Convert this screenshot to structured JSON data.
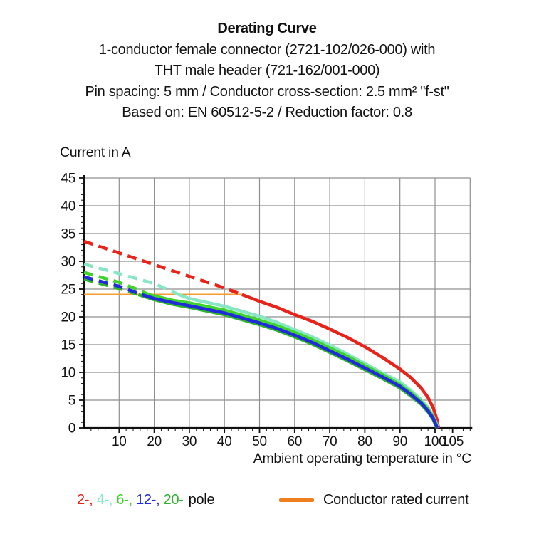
{
  "header": {
    "title": "Derating Curve",
    "subtitle_lines": [
      "1-conductor female connector (2721-102/026-000) with",
      "THT male header (721-162/001-000)",
      "Pin spacing: 5 mm / Conductor cross-section: 2.5 mm² \"f-st\"",
      "Based on: EN 60512-5-2 / Reduction factor: 0.8"
    ]
  },
  "chart_data": {
    "type": "line",
    "title": "Derating Curve",
    "ylabel": "Current in A",
    "xlabel": "Ambient operating temperature in °C",
    "xlim": [
      0,
      110
    ],
    "ylim": [
      0,
      45
    ],
    "x_major_ticks": [
      10,
      20,
      30,
      40,
      50,
      60,
      70,
      80,
      90,
      100,
      105
    ],
    "x_minor_step": 2,
    "y_major_ticks": [
      0,
      5,
      10,
      15,
      20,
      25,
      30,
      35,
      40,
      45
    ],
    "y_minor_step": 1,
    "grid": true,
    "grid_color": "#8F8F8F",
    "axis_color": "#111111",
    "rated_current": {
      "label": "Conductor rated current",
      "value": 24,
      "x_range": [
        0,
        45
      ],
      "line_color": "#F89C30",
      "swatch_color": "#F07E1C"
    },
    "series": [
      {
        "name": "2-pole",
        "color": "#E8231A",
        "dash_until": 45,
        "points": [
          [
            0,
            33.6
          ],
          [
            10,
            31.5
          ],
          [
            20,
            29.4
          ],
          [
            30,
            27.3
          ],
          [
            40,
            25.2
          ],
          [
            45,
            24
          ],
          [
            50,
            22.8
          ],
          [
            55,
            21.7
          ],
          [
            60,
            20.4
          ],
          [
            65,
            19.2
          ],
          [
            70,
            17.8
          ],
          [
            75,
            16.3
          ],
          [
            80,
            14.6
          ],
          [
            85,
            12.7
          ],
          [
            90,
            10.6
          ],
          [
            93,
            9.1
          ],
          [
            96,
            7.2
          ],
          [
            98,
            5.5
          ],
          [
            99.5,
            3.6
          ],
          [
            100.5,
            1.6
          ],
          [
            101,
            0
          ]
        ]
      },
      {
        "name": "4-pole",
        "color": "#87E7C5",
        "dash_until": 27,
        "points": [
          [
            0,
            29.5
          ],
          [
            10,
            27.8
          ],
          [
            20,
            26
          ],
          [
            25,
            24.6
          ],
          [
            27,
            24
          ],
          [
            30,
            23.3
          ],
          [
            35,
            22.6
          ],
          [
            40,
            21.9
          ],
          [
            45,
            21
          ],
          [
            50,
            20.1
          ],
          [
            55,
            19
          ],
          [
            60,
            17.7
          ],
          [
            65,
            16.4
          ],
          [
            70,
            14.9
          ],
          [
            75,
            13.3
          ],
          [
            80,
            11.6
          ],
          [
            85,
            9.9
          ],
          [
            90,
            8.3
          ],
          [
            93,
            6.8
          ],
          [
            96,
            5.1
          ],
          [
            98,
            3.7
          ],
          [
            99.5,
            2.1
          ],
          [
            100.4,
            0.8
          ],
          [
            100.8,
            0
          ]
        ]
      },
      {
        "name": "6-pole",
        "color": "#3FD42C",
        "dash_until": 18.5,
        "points": [
          [
            0,
            28
          ],
          [
            10,
            26.2
          ],
          [
            15,
            25
          ],
          [
            18.5,
            24
          ],
          [
            25,
            23
          ],
          [
            30,
            22.5
          ],
          [
            40,
            21.2
          ],
          [
            50,
            19.4
          ],
          [
            55,
            18.4
          ],
          [
            60,
            17.2
          ],
          [
            65,
            15.9
          ],
          [
            70,
            14.4
          ],
          [
            75,
            12.9
          ],
          [
            80,
            11.2
          ],
          [
            85,
            9.6
          ],
          [
            90,
            7.8
          ],
          [
            93,
            6.4
          ],
          [
            96,
            4.8
          ],
          [
            98,
            3.4
          ],
          [
            99.5,
            1.9
          ],
          [
            100.3,
            0.7
          ],
          [
            100.7,
            0
          ]
        ]
      },
      {
        "name": "20-pole",
        "color": "#2FB32A",
        "dash_until": 15.5,
        "points": [
          [
            0,
            26.8
          ],
          [
            10,
            25.1
          ],
          [
            15.5,
            24
          ],
          [
            20,
            23.1
          ],
          [
            25,
            22.3
          ],
          [
            30,
            21.7
          ],
          [
            40,
            20.4
          ],
          [
            50,
            18.6
          ],
          [
            55,
            17.6
          ],
          [
            60,
            16.4
          ],
          [
            65,
            15.1
          ],
          [
            70,
            13.6
          ],
          [
            75,
            12.1
          ],
          [
            80,
            10.5
          ],
          [
            85,
            8.9
          ],
          [
            90,
            7.2
          ],
          [
            93,
            5.8
          ],
          [
            96,
            4.3
          ],
          [
            98,
            2.9
          ],
          [
            99.5,
            1.5
          ],
          [
            100.2,
            0.4
          ],
          [
            100.5,
            0
          ]
        ]
      },
      {
        "name": "12-pole",
        "color": "#2129DC",
        "dash_until": 16.5,
        "points": [
          [
            0,
            27.2
          ],
          [
            10,
            25.5
          ],
          [
            16.5,
            24
          ],
          [
            20,
            23.3
          ],
          [
            25,
            22.6
          ],
          [
            30,
            22
          ],
          [
            40,
            20.7
          ],
          [
            50,
            18.9
          ],
          [
            55,
            17.9
          ],
          [
            60,
            16.7
          ],
          [
            65,
            15.4
          ],
          [
            70,
            13.9
          ],
          [
            75,
            12.4
          ],
          [
            80,
            10.8
          ],
          [
            85,
            9.2
          ],
          [
            90,
            7.5
          ],
          [
            93,
            6.1
          ],
          [
            96,
            4.5
          ],
          [
            98,
            3.1
          ],
          [
            99.5,
            1.7
          ],
          [
            100.3,
            0.5
          ],
          [
            100.6,
            0
          ]
        ]
      }
    ],
    "legend": {
      "pole_entries": [
        {
          "label": "2-,",
          "color": "#E8231A"
        },
        {
          "label": "4-,",
          "color": "#87E7C5"
        },
        {
          "label": "6-,",
          "color": "#3FD42C"
        },
        {
          "label": "12-,",
          "color": "#2129DC"
        },
        {
          "label": "20-",
          "color": "#2FB32A"
        }
      ],
      "pole_suffix": "pole"
    }
  }
}
